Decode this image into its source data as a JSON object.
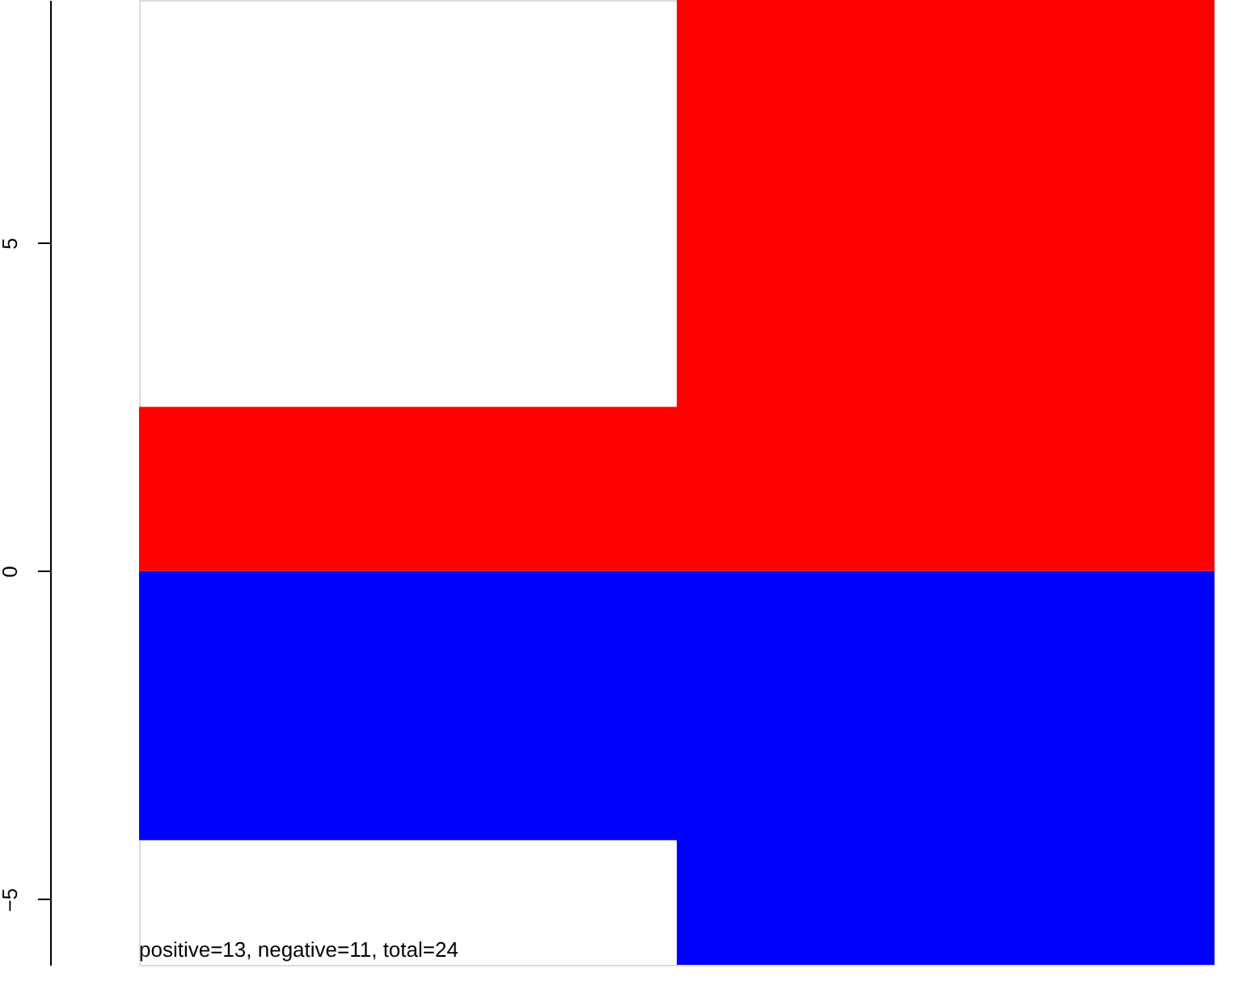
{
  "chart_data": {
    "type": "bar",
    "stacked": true,
    "categories": [
      null,
      null
    ],
    "series": [
      {
        "color": "#ff0000",
        "values": [
          2.5,
          8.7
        ]
      },
      {
        "color": "#0000ff",
        "values": [
          -4.1,
          -6.0
        ]
      }
    ],
    "ylim": [
      -6.0,
      8.7
    ],
    "yticks": [
      -5,
      0,
      5
    ],
    "grid": false,
    "legend": false,
    "tick_labels": "y",
    "annotations": [
      "positive=13, negative=11, total=24"
    ]
  }
}
